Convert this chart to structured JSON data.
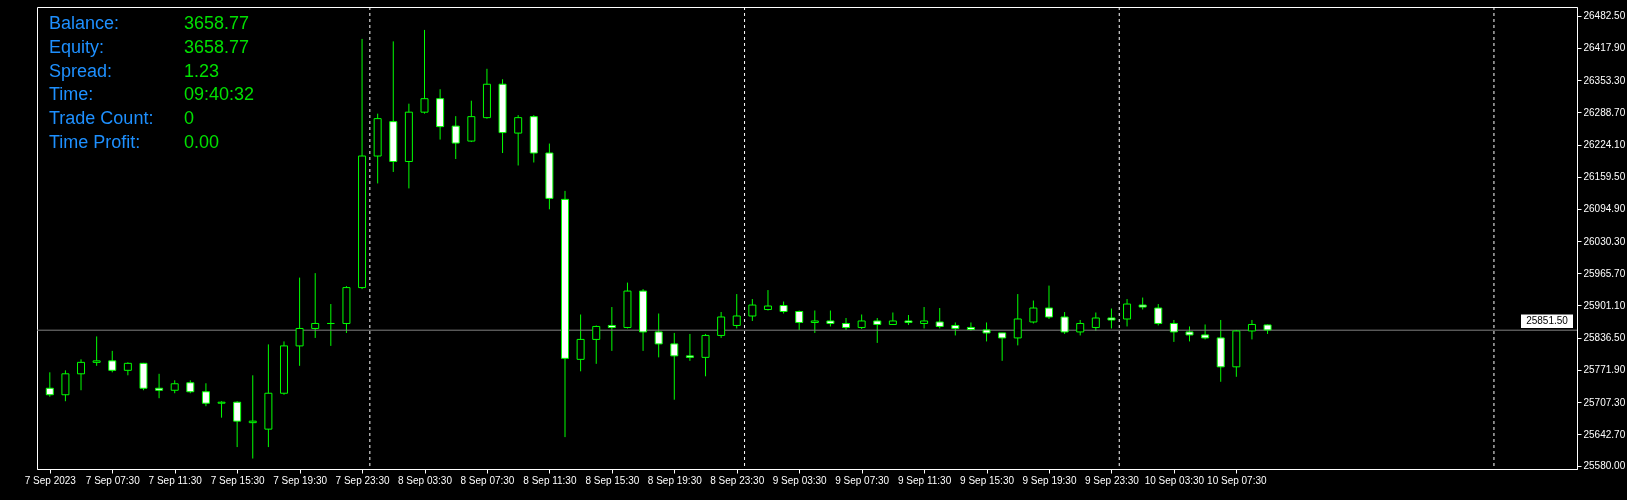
{
  "chart_data": {
    "type": "candlestick",
    "color": "#00ff00",
    "x": [
      "2023-09-07T03:30",
      "2023-09-07T04:30",
      "2023-09-07T05:30",
      "2023-09-07T06:30",
      "2023-09-07T07:30",
      "2023-09-07T08:30",
      "2023-09-07T09:30",
      "2023-09-07T10:30",
      "2023-09-07T11:30",
      "2023-09-07T12:30",
      "2023-09-07T13:30",
      "2023-09-07T14:30",
      "2023-09-07T15:30",
      "2023-09-07T16:30",
      "2023-09-07T17:30",
      "2023-09-07T18:30",
      "2023-09-07T19:30",
      "2023-09-07T20:30",
      "2023-09-07T21:30",
      "2023-09-07T22:30",
      "2023-09-07T23:30",
      "2023-09-08T00:30",
      "2023-09-08T01:30",
      "2023-09-08T02:30",
      "2023-09-08T03:30",
      "2023-09-08T04:30",
      "2023-09-08T05:30",
      "2023-09-08T06:30",
      "2023-09-08T07:30",
      "2023-09-08T08:30",
      "2023-09-08T09:30",
      "2023-09-08T10:30",
      "2023-09-08T11:30",
      "2023-09-08T12:30",
      "2023-09-08T13:30",
      "2023-09-08T14:30",
      "2023-09-08T15:30",
      "2023-09-08T16:30",
      "2023-09-08T17:30",
      "2023-09-08T18:30",
      "2023-09-08T19:30",
      "2023-09-08T20:30",
      "2023-09-08T21:30",
      "2023-09-08T22:30",
      "2023-09-08T23:30",
      "2023-09-09T00:30",
      "2023-09-09T01:30",
      "2023-09-09T02:30",
      "2023-09-09T03:30",
      "2023-09-09T04:30",
      "2023-09-09T05:30",
      "2023-09-09T06:30",
      "2023-09-09T07:30",
      "2023-09-09T08:30",
      "2023-09-09T09:30",
      "2023-09-09T10:30",
      "2023-09-09T11:30",
      "2023-09-09T12:30",
      "2023-09-09T13:30",
      "2023-09-09T14:30",
      "2023-09-09T15:30",
      "2023-09-09T16:30",
      "2023-09-09T17:30",
      "2023-09-09T18:30",
      "2023-09-09T19:30",
      "2023-09-09T20:30",
      "2023-09-09T21:30",
      "2023-09-09T22:30",
      "2023-09-09T23:30",
      "2023-09-10T00:30",
      "2023-09-10T01:30",
      "2023-09-10T02:30",
      "2023-09-10T03:30",
      "2023-09-10T04:30",
      "2023-09-10T05:30",
      "2023-09-10T06:30",
      "2023-09-10T07:30",
      "2023-09-10T08:30",
      "2023-09-10T09:30"
    ],
    "ohlc": [
      [
        25735,
        25767,
        25718,
        25722
      ],
      [
        25722,
        25771,
        25709,
        25764
      ],
      [
        25764,
        25793,
        25731,
        25787
      ],
      [
        25787,
        25839,
        25780,
        25790
      ],
      [
        25790,
        25810,
        25767,
        25771
      ],
      [
        25771,
        25787,
        25761,
        25785
      ],
      [
        25785,
        25786,
        25731,
        25735
      ],
      [
        25735,
        25764,
        25715,
        25731
      ],
      [
        25731,
        25751,
        25725,
        25744
      ],
      [
        25746,
        25751,
        25725,
        25728
      ],
      [
        25728,
        25745,
        25699,
        25705
      ],
      [
        25705,
        25709,
        25676,
        25707
      ],
      [
        25707,
        25709,
        25617,
        25669
      ],
      [
        25666,
        25761,
        25594,
        25669
      ],
      [
        25653,
        25823,
        25617,
        25725
      ],
      [
        25725,
        25829,
        25722,
        25820
      ],
      [
        25820,
        25957,
        25780,
        25855
      ],
      [
        25855,
        25966,
        25836,
        25865
      ],
      [
        25865,
        25904,
        25820,
        25865
      ],
      [
        25865,
        25940,
        25846,
        25937
      ],
      [
        25937,
        26436,
        25934,
        26201
      ],
      [
        26201,
        26286,
        26146,
        26276
      ],
      [
        26270,
        26431,
        26169,
        26190
      ],
      [
        26190,
        26306,
        26136,
        26289
      ],
      [
        26289,
        26454,
        26286,
        26316
      ],
      [
        26316,
        26335,
        26234,
        26260
      ],
      [
        26261,
        26281,
        26195,
        26227
      ],
      [
        26231,
        26312,
        26229,
        26280
      ],
      [
        26278,
        26376,
        26276,
        26345
      ],
      [
        26345,
        26355,
        26207,
        26248
      ],
      [
        26247,
        26283,
        26182,
        26278
      ],
      [
        26280,
        26283,
        26188,
        26207
      ],
      [
        26207,
        26226,
        26094,
        26116
      ],
      [
        26114,
        26131,
        25637,
        25795
      ],
      [
        25793,
        25883,
        25769,
        25833
      ],
      [
        25833,
        25861,
        25784,
        25859
      ],
      [
        25861,
        25898,
        25810,
        25857
      ],
      [
        25857,
        25947,
        25855,
        25930
      ],
      [
        25930,
        25934,
        25810,
        25848
      ],
      [
        25848,
        25885,
        25797,
        25824
      ],
      [
        25824,
        25846,
        25712,
        25800
      ],
      [
        25800,
        25844,
        25790,
        25797
      ],
      [
        25797,
        25844,
        25759,
        25841
      ],
      [
        25841,
        25888,
        25836,
        25878
      ],
      [
        25861,
        25924,
        25855,
        25880
      ],
      [
        25880,
        25914,
        25870,
        25902
      ],
      [
        25893,
        25932,
        25891,
        25900
      ],
      [
        25901,
        25909,
        25885,
        25889
      ],
      [
        25889,
        25891,
        25852,
        25867
      ],
      [
        25867,
        25891,
        25846,
        25870
      ],
      [
        25870,
        25891,
        25859,
        25865
      ],
      [
        25865,
        25876,
        25852,
        25857
      ],
      [
        25857,
        25883,
        25854,
        25870
      ],
      [
        25870,
        25876,
        25826,
        25863
      ],
      [
        25863,
        25887,
        25862,
        25870
      ],
      [
        25870,
        25882,
        25862,
        25867
      ],
      [
        25865,
        25898,
        25855,
        25870
      ],
      [
        25868,
        25896,
        25855,
        25859
      ],
      [
        25861,
        25867,
        25841,
        25855
      ],
      [
        25857,
        25867,
        25850,
        25853
      ],
      [
        25852,
        25867,
        25829,
        25846
      ],
      [
        25846,
        25846,
        25790,
        25836
      ],
      [
        25836,
        25924,
        25821,
        25874
      ],
      [
        25868,
        25911,
        25865,
        25896
      ],
      [
        25896,
        25941,
        25874,
        25878
      ],
      [
        25878,
        25888,
        25844,
        25848
      ],
      [
        25848,
        25872,
        25841,
        25865
      ],
      [
        25857,
        25887,
        25850,
        25876
      ],
      [
        25876,
        25895,
        25855,
        25872
      ],
      [
        25874,
        25914,
        25859,
        25904
      ],
      [
        25902,
        25917,
        25893,
        25898
      ],
      [
        25896,
        25904,
        25861,
        25865
      ],
      [
        25865,
        25872,
        25828,
        25848
      ],
      [
        25848,
        25859,
        25829,
        25842
      ],
      [
        25842,
        25863,
        25833,
        25836
      ],
      [
        25836,
        25872,
        25748,
        25778
      ],
      [
        25778,
        25852,
        25758,
        25850
      ],
      [
        25850,
        25872,
        25833,
        25863
      ],
      [
        25862,
        25863,
        25844,
        25852
      ]
    ],
    "xlim": [
      "2023-09-07T03:00",
      "2023-09-11T05:00"
    ],
    "ylim": [
      25573,
      26500
    ],
    "xticks": [
      {
        "value": "2023-09-07T03:30",
        "label": "7 Sep 2023"
      },
      {
        "value": "2023-09-07T07:30",
        "label": "7 Sep 07:30"
      },
      {
        "value": "2023-09-07T11:30",
        "label": "7 Sep 11:30"
      },
      {
        "value": "2023-09-07T15:30",
        "label": "7 Sep 15:30"
      },
      {
        "value": "2023-09-07T19:30",
        "label": "7 Sep 19:30"
      },
      {
        "value": "2023-09-07T23:30",
        "label": "7 Sep 23:30"
      },
      {
        "value": "2023-09-08T03:30",
        "label": "8 Sep 03:30"
      },
      {
        "value": "2023-09-08T07:30",
        "label": "8 Sep 07:30"
      },
      {
        "value": "2023-09-08T11:30",
        "label": "8 Sep 11:30"
      },
      {
        "value": "2023-09-08T15:30",
        "label": "8 Sep 15:30"
      },
      {
        "value": "2023-09-08T19:30",
        "label": "8 Sep 19:30"
      },
      {
        "value": "2023-09-08T23:30",
        "label": "8 Sep 23:30"
      },
      {
        "value": "2023-09-09T03:30",
        "label": "9 Sep 03:30"
      },
      {
        "value": "2023-09-09T07:30",
        "label": "9 Sep 07:30"
      },
      {
        "value": "2023-09-09T11:30",
        "label": "9 Sep 11:30"
      },
      {
        "value": "2023-09-09T15:30",
        "label": "9 Sep 15:30"
      },
      {
        "value": "2023-09-09T19:30",
        "label": "9 Sep 19:30"
      },
      {
        "value": "2023-09-09T23:30",
        "label": "9 Sep 23:30"
      },
      {
        "value": "2023-09-10T03:30",
        "label": "10 Sep 03:30"
      },
      {
        "value": "2023-09-10T07:30",
        "label": "10 Sep 07:30"
      }
    ],
    "yticks": [
      {
        "value": 25580,
        "label": "25580.00"
      },
      {
        "value": 25642.7,
        "label": "25642.70"
      },
      {
        "value": 25707.3,
        "label": "25707.30"
      },
      {
        "value": 25771.9,
        "label": "25771.90"
      },
      {
        "value": 25836.5,
        "label": "25836.50"
      },
      {
        "value": 25901.1,
        "label": "25901.10"
      },
      {
        "value": 25965.7,
        "label": "25965.70"
      },
      {
        "value": 26030.3,
        "label": "26030.30"
      },
      {
        "value": 26094.9,
        "label": "26094.90"
      },
      {
        "value": 26159.5,
        "label": "26159.50"
      },
      {
        "value": 26224.1,
        "label": "26224.10"
      },
      {
        "value": 26288.7,
        "label": "26288.70"
      },
      {
        "value": 26353.3,
        "label": "26353.30"
      },
      {
        "value": 26417.9,
        "label": "26417.90"
      },
      {
        "value": 26482.5,
        "label": "26482.50"
      }
    ],
    "ref_lines": [
      {
        "axis": "x",
        "value": "2023-09-08T00:00",
        "color": "#ffffff",
        "line_style": "dashed"
      },
      {
        "axis": "x",
        "value": "2023-09-09T00:00",
        "color": "#ffffff",
        "line_style": "dashed"
      },
      {
        "axis": "x",
        "value": "2023-09-10T00:00",
        "color": "#ffffff",
        "line_style": "dashed"
      },
      {
        "axis": "x",
        "value": "2023-09-11T00:00",
        "color": "#ffffff",
        "line_style": "dashed"
      },
      {
        "axis": "y",
        "value": 25851.5,
        "label": "25851.50",
        "color": "#808080"
      }
    ],
    "annotations": [
      "Balance:",
      "3658.77",
      "Equity:",
      "3658.77",
      "Spread:",
      "1.23",
      "Time:",
      "09:40:32",
      "Trade Count:",
      "0",
      "Time Profit:",
      "0.00"
    ]
  }
}
